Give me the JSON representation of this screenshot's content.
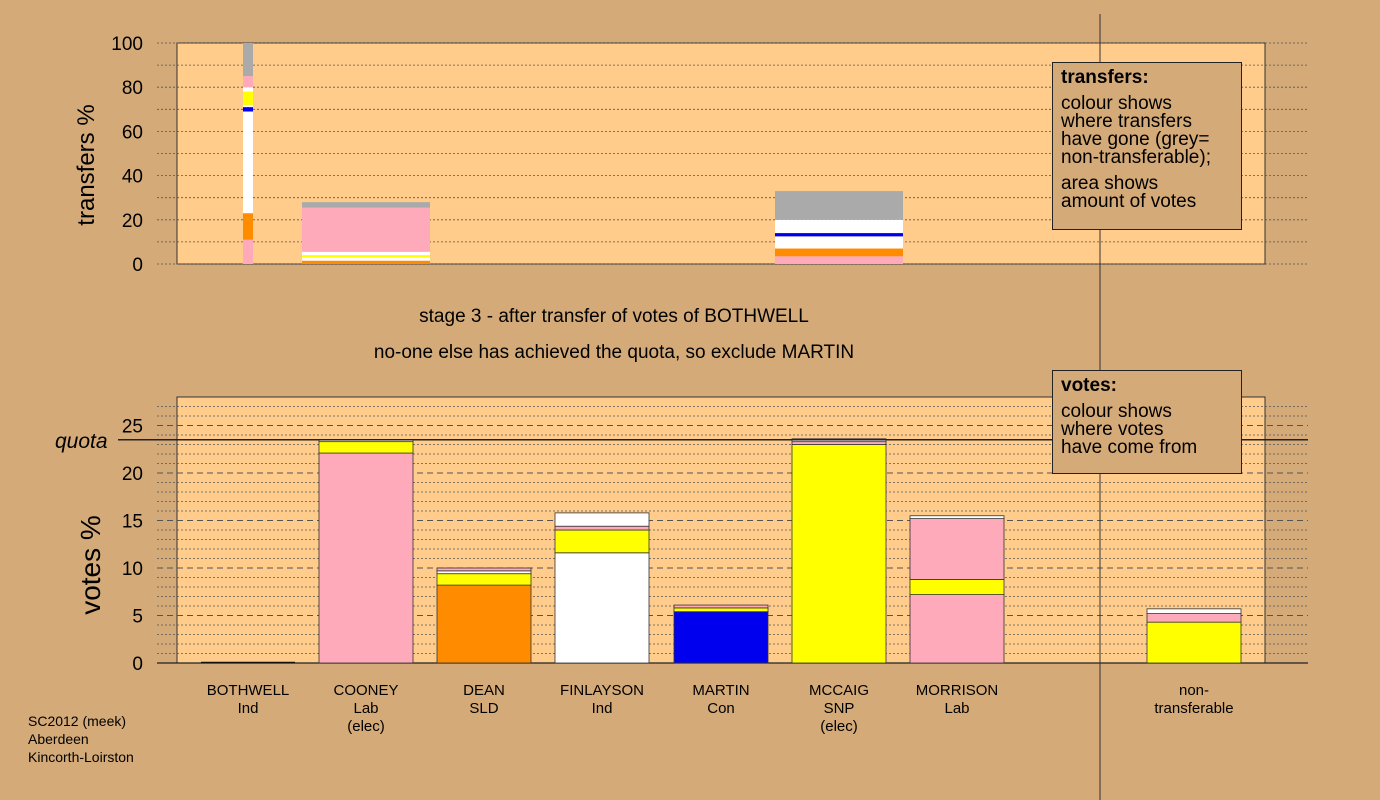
{
  "messages": {
    "stage": "stage 3 - after transfer of votes of BOTHWELL",
    "action": "no-one else has achieved the quota, so exclude MARTIN"
  },
  "legend_transfers": {
    "title": "transfers:",
    "lines": [
      "colour shows",
      "where transfers",
      "have gone (grey=",
      "non-transferable);"
    ],
    "lines2": [
      "area shows",
      "amount of votes"
    ]
  },
  "legend_votes": {
    "title": "votes:",
    "lines": [
      "colour shows",
      "where votes",
      "have come from"
    ]
  },
  "candidates": [
    {
      "name": "BOTHWELL",
      "party": "Ind",
      "note": ""
    },
    {
      "name": "COONEY",
      "party": "Lab",
      "note": "(elec)"
    },
    {
      "name": "DEAN",
      "party": "SLD",
      "note": ""
    },
    {
      "name": "FINLAYSON",
      "party": "Ind",
      "note": ""
    },
    {
      "name": "MARTIN",
      "party": "Con",
      "note": ""
    },
    {
      "name": "MCCAIG",
      "party": "SNP",
      "note": "(elec)"
    },
    {
      "name": "MORRISON",
      "party": "Lab",
      "note": ""
    }
  ],
  "nontransferable_label": [
    "non-",
    "transferable"
  ],
  "footer": [
    "SC2012 (meek)",
    "Aberdeen",
    "Kincorth-Loirston"
  ],
  "colors": {
    "background": "#d4aa78",
    "plot_bg": "#ffcc8c",
    "pink": "#ffaabb",
    "yellow": "#ffff00",
    "orange": "#ff8c00",
    "white": "#ffffff",
    "blue": "#0000ee",
    "grey": "#aaaaaa"
  },
  "chart_data": [
    {
      "type": "bar",
      "stacked": true,
      "ylabel": "transfers %",
      "ylim": [
        0,
        100
      ],
      "yticks": [
        0,
        20,
        40,
        60,
        80,
        100
      ],
      "bars": [
        {
          "candidate": "BOTHWELL",
          "segments": [
            {
              "color": "pink",
              "value": 11
            },
            {
              "color": "orange",
              "value": 12
            },
            {
              "color": "white",
              "value": 46
            },
            {
              "color": "blue",
              "value": 2
            },
            {
              "color": "white",
              "value": 1
            },
            {
              "color": "yellow",
              "value": 6
            },
            {
              "color": "white",
              "value": 2
            },
            {
              "color": "pink",
              "value": 5
            },
            {
              "color": "grey",
              "value": 15
            }
          ]
        },
        {
          "candidate": "COONEY",
          "segments": [
            {
              "color": "orange",
              "value": 1.5
            },
            {
              "color": "white",
              "value": 1.5
            },
            {
              "color": "yellow",
              "value": 1
            },
            {
              "color": "white",
              "value": 1.5
            },
            {
              "color": "pink",
              "value": 20
            },
            {
              "color": "grey",
              "value": 2.5
            }
          ]
        },
        {
          "candidate": "MCCAIG",
          "segments": [
            {
              "color": "pink",
              "value": 3.5
            },
            {
              "color": "orange",
              "value": 3.5
            },
            {
              "color": "white",
              "value": 5.5
            },
            {
              "color": "blue",
              "value": 1.5
            },
            {
              "color": "white",
              "value": 6
            },
            {
              "color": "grey",
              "value": 13
            }
          ]
        }
      ]
    },
    {
      "type": "bar",
      "stacked": true,
      "ylabel": "votes %",
      "ylim": [
        0,
        28
      ],
      "yticks": [
        0,
        5,
        10,
        15,
        20,
        25
      ],
      "quota": 23.5,
      "quota_label": "quota",
      "bars": [
        {
          "candidate": "BOTHWELL",
          "segments": []
        },
        {
          "candidate": "COONEY",
          "segments": [
            {
              "color": "pink",
              "value": 22.1
            },
            {
              "color": "yellow",
              "value": 1.2
            },
            {
              "color": "white",
              "value": 0.2
            }
          ]
        },
        {
          "candidate": "DEAN",
          "segments": [
            {
              "color": "orange",
              "value": 8.2
            },
            {
              "color": "yellow",
              "value": 1.2
            },
            {
              "color": "white",
              "value": 0.3
            },
            {
              "color": "pink",
              "value": 0.3
            }
          ]
        },
        {
          "candidate": "FINLAYSON",
          "segments": [
            {
              "color": "white",
              "value": 11.6
            },
            {
              "color": "yellow",
              "value": 2.4
            },
            {
              "color": "pink",
              "value": 0.4
            },
            {
              "color": "white",
              "value": 1.4
            }
          ]
        },
        {
          "candidate": "MARTIN",
          "segments": [
            {
              "color": "blue",
              "value": 5.4
            },
            {
              "color": "yellow",
              "value": 0.4
            },
            {
              "color": "pink",
              "value": 0.3
            }
          ]
        },
        {
          "candidate": "MCCAIG",
          "segments": [
            {
              "color": "yellow",
              "value": 23.0
            },
            {
              "color": "pink",
              "value": 0.3
            },
            {
              "color": "white",
              "value": 0.3
            }
          ]
        },
        {
          "candidate": "MORRISON",
          "segments": [
            {
              "color": "pink",
              "value": 7.2
            },
            {
              "color": "yellow",
              "value": 1.6
            },
            {
              "color": "pink",
              "value": 6.4
            },
            {
              "color": "white",
              "value": 0.3
            }
          ]
        },
        {
          "candidate": "non-transferable",
          "segments": [
            {
              "color": "yellow",
              "value": 4.3
            },
            {
              "color": "pink",
              "value": 0.9
            },
            {
              "color": "white",
              "value": 0.5
            }
          ]
        }
      ]
    }
  ]
}
